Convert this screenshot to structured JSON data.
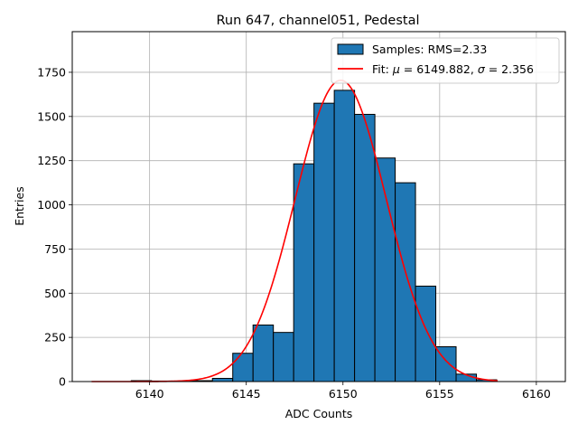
{
  "chart_data": {
    "type": "bar",
    "title": "Run 647, channel051, Pedestal",
    "xlabel": "ADC Counts",
    "ylabel": "Entries",
    "xlim": [
      6136,
      6161.5
    ],
    "ylim": [
      0,
      1980
    ],
    "xticks": [
      6140,
      6145,
      6150,
      6155,
      6160
    ],
    "yticks": [
      0,
      250,
      500,
      750,
      1000,
      1250,
      1500,
      1750
    ],
    "grid": true,
    "legend_position": "top-right",
    "histogram": {
      "name": "Samples: RMS=2.33",
      "color": "#1f77b4",
      "edgecolor": "#000000",
      "bin_edges": [
        6138.0,
        6139.05,
        6140.1,
        6141.15,
        6142.2,
        6143.25,
        6144.3,
        6145.35,
        6146.4,
        6147.45,
        6148.5,
        6149.55,
        6150.6,
        6151.65,
        6152.7,
        6153.75,
        6154.8,
        6155.85,
        6156.9,
        6157.95
      ],
      "counts": [
        0,
        5,
        3,
        3,
        5,
        18,
        160,
        320,
        278,
        1232,
        1575,
        1648,
        1512,
        1265,
        1125,
        540,
        197,
        42,
        10
      ]
    },
    "fit": {
      "name": "Fit: $\\mu$ = 6149.882, $\\sigma$ = 2.356",
      "color": "#ff0000",
      "mu": 6149.882,
      "sigma": 2.356,
      "amplitude": 1705,
      "x_range": [
        6137,
        6158
      ]
    }
  }
}
